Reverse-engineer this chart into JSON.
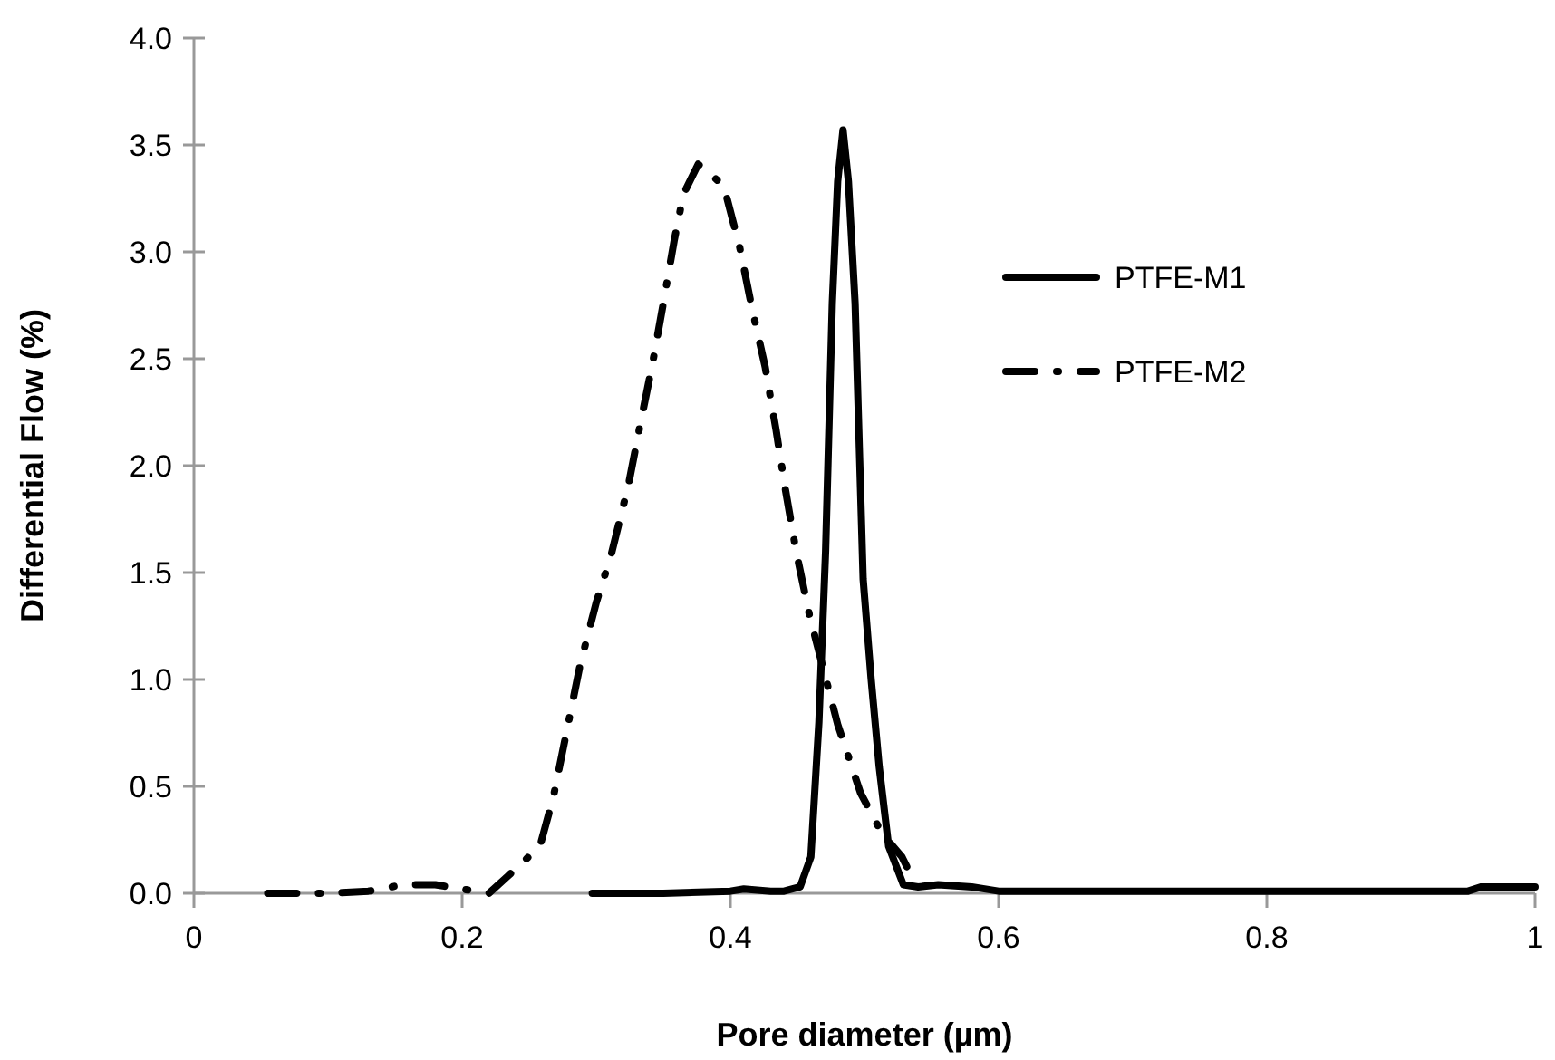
{
  "chart_data": {
    "type": "line",
    "xlabel": "Pore diameter (µm)",
    "ylabel": "Differential Flow (%)",
    "xlim": [
      0,
      1
    ],
    "xticks": [
      0,
      0.2,
      0.4,
      0.6,
      0.8,
      1
    ],
    "ylim": [
      0,
      4
    ],
    "yticks": [
      {
        "value": 0,
        "label": "0.0"
      },
      0.5,
      {
        "value": 1,
        "label": "1.0"
      },
      1.5,
      {
        "value": 2,
        "label": "2.0"
      },
      2.5,
      {
        "value": 3,
        "label": "3.0"
      },
      3.5,
      {
        "value": 4,
        "label": "4.0"
      }
    ],
    "grid": false,
    "legend": "right",
    "marker": "none",
    "series": [
      {
        "name": "PTFE-M1",
        "color": "#000000",
        "line_style": "solid",
        "x": [
          0.297,
          0.35,
          0.4,
          0.41,
          0.43,
          0.44,
          0.452,
          0.46,
          0.466,
          0.471,
          0.476,
          0.48,
          0.484,
          0.488,
          0.493,
          0.499,
          0.505,
          0.511,
          0.518,
          0.529,
          0.54,
          0.555,
          0.58,
          0.6,
          0.7,
          0.8,
          0.9,
          0.95,
          0.96,
          1.0
        ],
        "values": [
          0,
          0,
          0.01,
          0.02,
          0.01,
          0.01,
          0.03,
          0.17,
          0.8,
          1.6,
          2.76,
          3.33,
          3.57,
          3.33,
          2.76,
          1.47,
          1.0,
          0.59,
          0.22,
          0.04,
          0.03,
          0.04,
          0.03,
          0.01,
          0.01,
          0.01,
          0.01,
          0.01,
          0.03,
          0.03
        ]
      },
      {
        "name": "PTFE-M2",
        "color": "#000000",
        "line_style": "dashdot",
        "x": [
          0.055,
          0.1,
          0.13,
          0.14,
          0.155,
          0.18,
          0.2,
          0.22,
          0.234,
          0.258,
          0.268,
          0.279,
          0.288,
          0.3,
          0.311,
          0.324,
          0.333,
          0.342,
          0.35,
          0.358,
          0.365,
          0.376,
          0.395,
          0.407,
          0.416,
          0.426,
          0.434,
          0.441,
          0.449,
          0.459,
          0.48,
          0.497,
          0.513,
          0.528,
          0.535
        ],
        "values": [
          0,
          0,
          0.01,
          0.02,
          0.04,
          0.04,
          0.02,
          0,
          0.08,
          0.22,
          0.45,
          0.79,
          1.07,
          1.36,
          1.58,
          1.91,
          2.2,
          2.48,
          2.76,
          3.05,
          3.27,
          3.41,
          3.31,
          3.02,
          2.74,
          2.46,
          2.17,
          1.89,
          1.6,
          1.3,
          0.79,
          0.47,
          0.28,
          0.17,
          0.08
        ]
      }
    ]
  }
}
